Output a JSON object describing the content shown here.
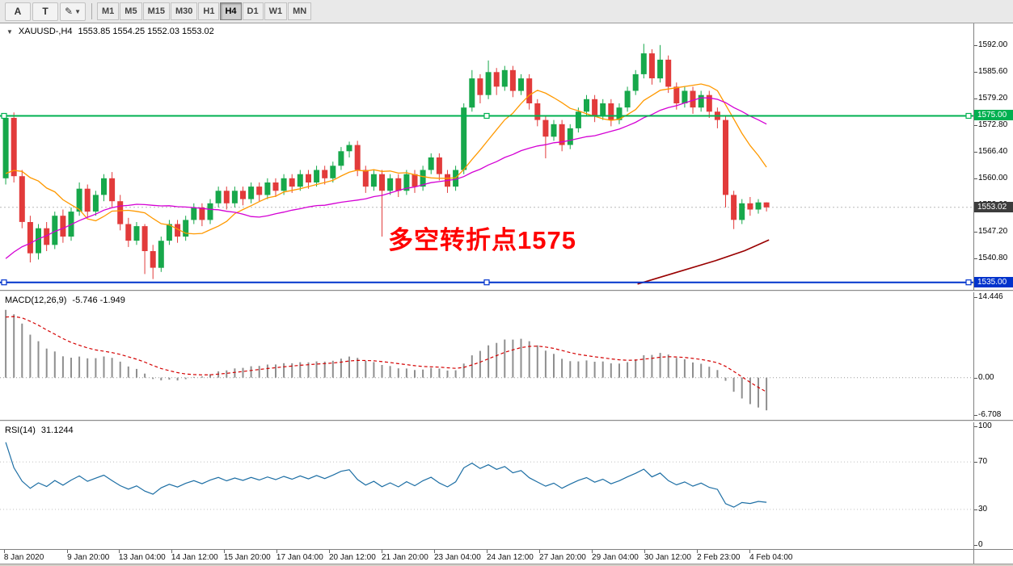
{
  "toolbar": {
    "tools": [
      "A",
      "T",
      "✎"
    ],
    "timeframes": [
      "M1",
      "M5",
      "M15",
      "M30",
      "H1",
      "H4",
      "D1",
      "W1",
      "MN"
    ],
    "active_timeframe": "H4"
  },
  "chart_data": [
    {
      "type": "candlestick",
      "symbol_period": "XAUUSD-,H4",
      "ohlc_display": "1553.85 1554.25 1552.03 1553.02",
      "price_range": [
        1533.2,
        1597.2
      ],
      "x_extent_frac": 0.79,
      "colors": {
        "up": "#17a84b",
        "down": "#e23b3b"
      },
      "axis_labels": [
        "1592.00",
        "1585.60",
        "1579.20",
        "1572.80",
        "1566.40",
        "1560.00",
        "1553.60",
        "1547.20",
        "1540.80"
      ],
      "hlines": [
        {
          "price": 1575.0,
          "label": "1575.00",
          "color": "#00b050",
          "selected": true
        },
        {
          "price": 1535.0,
          "label": "1535.00",
          "color": "#0033cc",
          "selected": true
        }
      ],
      "current_price": {
        "value": 1553.02,
        "label": "1553.02"
      },
      "annotation": {
        "text": "多空转折点1575",
        "color": "#ff0000"
      },
      "moving_averages": [
        {
          "name": "fast-ma-line",
          "period": 10,
          "color": "#ff9900"
        },
        {
          "name": "slow-ma-line",
          "period": 30,
          "color": "#d400d4"
        }
      ],
      "extra_line": {
        "name": "long-ma-line",
        "color": "#990000",
        "points": [
          [
            0.655,
            1534.6
          ],
          [
            0.695,
            1537.4
          ],
          [
            0.735,
            1540.2
          ],
          [
            0.765,
            1542.6
          ],
          [
            0.79,
            1545.2
          ]
        ]
      },
      "warmup_closes": [
        1508,
        1513,
        1512,
        1517,
        1516,
        1521,
        1520,
        1525,
        1524,
        1529,
        1528,
        1533,
        1532,
        1537,
        1536,
        1541,
        1540,
        1545,
        1544,
        1549,
        1548,
        1553,
        1552,
        1557,
        1556,
        1561,
        1560,
        1565,
        1564,
        1569
      ],
      "candles": [
        [
          1560.0,
          1575.6,
          1558.5,
          1574.5
        ],
        [
          1574.5,
          1575.8,
          1559.0,
          1560.5
        ],
        [
          1560.5,
          1562.0,
          1548.0,
          1549.5
        ],
        [
          1549.5,
          1551.0,
          1539.8,
          1542.0
        ],
        [
          1542.0,
          1549.0,
          1540.5,
          1548.0
        ],
        [
          1548.0,
          1549.5,
          1542.5,
          1544.0
        ],
        [
          1544.0,
          1552.0,
          1543.0,
          1551.0
        ],
        [
          1551.0,
          1552.5,
          1544.5,
          1546.0
        ],
        [
          1546.0,
          1553.0,
          1545.0,
          1552.0
        ],
        [
          1552.0,
          1559.0,
          1551.0,
          1557.5
        ],
        [
          1557.5,
          1558.5,
          1550.5,
          1552.0
        ],
        [
          1552.0,
          1557.0,
          1551.0,
          1556.0
        ],
        [
          1556.0,
          1561.0,
          1554.5,
          1560.0
        ],
        [
          1560.0,
          1561.5,
          1553.0,
          1554.5
        ],
        [
          1554.5,
          1556.0,
          1547.5,
          1549.0
        ],
        [
          1549.0,
          1550.5,
          1543.5,
          1545.0
        ],
        [
          1545.0,
          1549.5,
          1544.0,
          1548.5
        ],
        [
          1548.5,
          1549.0,
          1537.0,
          1542.5
        ],
        [
          1542.5,
          1544.0,
          1535.8,
          1538.5
        ],
        [
          1538.5,
          1546.0,
          1537.5,
          1545.0
        ],
        [
          1545.0,
          1550.0,
          1544.0,
          1549.0
        ],
        [
          1549.0,
          1550.0,
          1544.5,
          1546.0
        ],
        [
          1546.0,
          1551.0,
          1545.0,
          1550.0
        ],
        [
          1550.0,
          1554.0,
          1549.0,
          1553.0
        ],
        [
          1553.0,
          1554.0,
          1548.5,
          1550.0
        ],
        [
          1550.0,
          1555.0,
          1549.0,
          1554.0
        ],
        [
          1554.0,
          1558.0,
          1553.0,
          1557.0
        ],
        [
          1557.0,
          1558.0,
          1552.5,
          1554.0
        ],
        [
          1554.0,
          1558.0,
          1553.0,
          1557.0
        ],
        [
          1557.0,
          1558.0,
          1553.5,
          1555.0
        ],
        [
          1555.0,
          1559.0,
          1554.0,
          1558.0
        ],
        [
          1558.0,
          1559.0,
          1554.5,
          1556.0
        ],
        [
          1556.0,
          1560.0,
          1555.0,
          1559.0
        ],
        [
          1559.0,
          1560.0,
          1555.5,
          1557.0
        ],
        [
          1557.0,
          1561.0,
          1556.0,
          1560.0
        ],
        [
          1560.0,
          1561.0,
          1556.5,
          1558.0
        ],
        [
          1558.0,
          1562.0,
          1557.0,
          1561.0
        ],
        [
          1561.0,
          1562.0,
          1557.5,
          1559.0
        ],
        [
          1559.0,
          1563.0,
          1558.0,
          1562.0
        ],
        [
          1562.0,
          1563.0,
          1558.5,
          1560.0
        ],
        [
          1560.0,
          1564.0,
          1559.0,
          1563.0
        ],
        [
          1563.0,
          1567.5,
          1562.0,
          1566.5
        ],
        [
          1566.5,
          1568.8,
          1565.0,
          1568.0
        ],
        [
          1568.0,
          1569.0,
          1560.5,
          1562.0
        ],
        [
          1562.0,
          1563.0,
          1556.5,
          1558.0
        ],
        [
          1558.0,
          1562.0,
          1557.0,
          1561.0
        ],
        [
          1561.0,
          1562.0,
          1546.0,
          1557.0
        ],
        [
          1557.0,
          1561.0,
          1556.0,
          1560.0
        ],
        [
          1560.0,
          1561.0,
          1555.5,
          1557.0
        ],
        [
          1557.0,
          1562.0,
          1556.0,
          1561.0
        ],
        [
          1561.0,
          1562.0,
          1556.5,
          1558.0
        ],
        [
          1558.0,
          1563.0,
          1557.0,
          1562.0
        ],
        [
          1562.0,
          1566.0,
          1561.0,
          1565.0
        ],
        [
          1565.0,
          1566.0,
          1559.5,
          1561.0
        ],
        [
          1561.0,
          1562.0,
          1556.5,
          1558.0
        ],
        [
          1558.0,
          1563.0,
          1557.0,
          1562.0
        ],
        [
          1562.0,
          1578.0,
          1561.0,
          1577.0
        ],
        [
          1577.0,
          1586.0,
          1576.0,
          1584.0
        ],
        [
          1584.0,
          1585.0,
          1578.0,
          1580.0
        ],
        [
          1580.0,
          1588.3,
          1579.0,
          1585.5
        ],
        [
          1585.5,
          1586.5,
          1580.0,
          1582.0
        ],
        [
          1582.0,
          1587.0,
          1581.0,
          1586.0
        ],
        [
          1586.0,
          1587.0,
          1579.5,
          1581.0
        ],
        [
          1581.0,
          1585.0,
          1580.0,
          1584.0
        ],
        [
          1584.0,
          1585.0,
          1576.5,
          1578.0
        ],
        [
          1578.0,
          1579.0,
          1572.5,
          1574.0
        ],
        [
          1574.0,
          1575.0,
          1564.8,
          1570.0
        ],
        [
          1570.0,
          1574.0,
          1569.0,
          1573.0
        ],
        [
          1573.0,
          1574.0,
          1566.5,
          1568.0
        ],
        [
          1568.0,
          1573.0,
          1567.0,
          1572.0
        ],
        [
          1572.0,
          1577.0,
          1571.0,
          1576.0
        ],
        [
          1576.0,
          1580.0,
          1575.0,
          1579.0
        ],
        [
          1579.0,
          1580.0,
          1573.5,
          1575.0
        ],
        [
          1575.0,
          1579.0,
          1574.0,
          1578.0
        ],
        [
          1578.0,
          1579.0,
          1572.5,
          1574.0
        ],
        [
          1574.0,
          1578.0,
          1573.0,
          1577.0
        ],
        [
          1577.0,
          1582.0,
          1576.0,
          1581.0
        ],
        [
          1581.0,
          1586.0,
          1580.0,
          1585.0
        ],
        [
          1585.0,
          1592.3,
          1584.0,
          1590.0
        ],
        [
          1590.0,
          1591.0,
          1582.5,
          1584.0
        ],
        [
          1584.0,
          1592.0,
          1583.0,
          1588.5
        ],
        [
          1588.5,
          1589.5,
          1580.5,
          1582.0
        ],
        [
          1582.0,
          1583.0,
          1576.5,
          1578.0
        ],
        [
          1578.0,
          1582.0,
          1577.0,
          1581.0
        ],
        [
          1581.0,
          1582.0,
          1575.5,
          1577.0
        ],
        [
          1577.0,
          1581.0,
          1576.0,
          1580.0
        ],
        [
          1580.0,
          1581.0,
          1574.5,
          1576.0
        ],
        [
          1576.0,
          1577.0,
          1572.0,
          1574.0
        ],
        [
          1574.0,
          1575.0,
          1553.0,
          1556.0
        ],
        [
          1556.0,
          1557.0,
          1547.8,
          1550.0
        ],
        [
          1550.0,
          1555.0,
          1549.0,
          1554.0
        ],
        [
          1554.0,
          1555.5,
          1551.0,
          1552.5
        ],
        [
          1552.5,
          1555.0,
          1551.5,
          1554.2
        ],
        [
          1554.2,
          1554.25,
          1552.03,
          1553.02
        ]
      ],
      "time_labels": [
        {
          "t": "8 Jan 2020",
          "x": 0.004
        },
        {
          "t": "9 Jan 20:00",
          "x": 0.069
        },
        {
          "t": "13 Jan 04:00",
          "x": 0.122
        },
        {
          "t": "14 Jan 12:00",
          "x": 0.176
        },
        {
          "t": "15 Jan 20:00",
          "x": 0.23
        },
        {
          "t": "17 Jan 04:00",
          "x": 0.284
        },
        {
          "t": "20 Jan 12:00",
          "x": 0.338
        },
        {
          "t": "21 Jan 20:00",
          "x": 0.392
        },
        {
          "t": "23 Jan 04:00",
          "x": 0.446
        },
        {
          "t": "24 Jan 12:00",
          "x": 0.5
        },
        {
          "t": "27 Jan 20:00",
          "x": 0.554
        },
        {
          "t": "29 Jan 04:00",
          "x": 0.608
        },
        {
          "t": "30 Jan 12:00",
          "x": 0.662
        },
        {
          "t": "2 Feb 23:00",
          "x": 0.716
        },
        {
          "t": "4 Feb 04:00",
          "x": 0.77
        }
      ]
    },
    {
      "type": "macd-indicator",
      "label": "MACD(12,26,9)",
      "values_display": "-5.746 -1.949",
      "params": {
        "fast": 12,
        "slow": 26,
        "signal": 9
      },
      "range": [
        -6.708,
        14.446
      ],
      "axis_labels": [
        "14.446",
        "0.00",
        "-6.708"
      ],
      "histogram_color": "#8f8f8f",
      "signal_color": "#d40000"
    },
    {
      "type": "rsi-indicator",
      "label": "RSI(14)",
      "value_display": "31.1244",
      "period": 14,
      "range": [
        0,
        100
      ],
      "levels": [
        70,
        30
      ],
      "axis_labels": [
        "100",
        "70",
        "30",
        "0"
      ],
      "line_color": "#1c6ea4"
    }
  ]
}
